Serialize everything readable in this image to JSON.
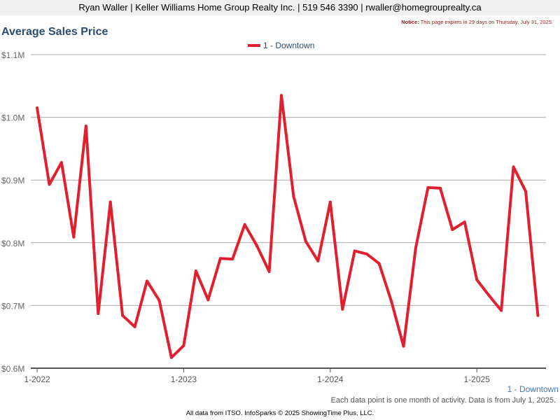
{
  "header": {
    "contact": "Ryan Waller | Keller Williams Home Group Realty Inc. | 519 546 3390 | rwaller@homegrouprealty.ca"
  },
  "notice": {
    "label": "Notice:",
    "text": " This page expires in 29 days on Thursday, July 31, 2025."
  },
  "bottom_legend": "1 - Downtown",
  "note": "Each data point is one month of activity. Data is from July 1, 2025.",
  "footer": "All data from ITSO. InfoSparks © 2025 ShowingTime Plus, LLC.",
  "colors": {
    "series": "#e0202f",
    "title": "#2b4b6f",
    "grid": "#aaaaaa"
  },
  "chart_data": {
    "type": "line",
    "title": "Average Sales Price",
    "ylim": [
      0.6,
      1.1
    ],
    "y_ticks": [
      {
        "value": 0.6,
        "label": "$0.6M"
      },
      {
        "value": 0.7,
        "label": "$0.7M"
      },
      {
        "value": 0.8,
        "label": "$0.8M"
      },
      {
        "value": 0.9,
        "label": "$0.9M"
      },
      {
        "value": 1.0,
        "label": "$1.0M"
      },
      {
        "value": 1.1,
        "label": "$1.1M"
      }
    ],
    "x_ticks": [
      {
        "index": 0,
        "label": "1-2022"
      },
      {
        "index": 12,
        "label": "1-2023"
      },
      {
        "index": 24,
        "label": "1-2024"
      },
      {
        "index": 36,
        "label": "1-2025"
      }
    ],
    "grid": true,
    "legend": "top-center",
    "series": [
      {
        "name": "1 - Downtown",
        "x": [
          "2022-01",
          "2022-02",
          "2022-03",
          "2022-04",
          "2022-05",
          "2022-06",
          "2022-07",
          "2022-08",
          "2022-09",
          "2022-10",
          "2022-11",
          "2022-12",
          "2023-01",
          "2023-02",
          "2023-03",
          "2023-04",
          "2023-05",
          "2023-06",
          "2023-07",
          "2023-08",
          "2023-09",
          "2023-10",
          "2023-11",
          "2023-12",
          "2024-01",
          "2024-02",
          "2024-03",
          "2024-04",
          "2024-05",
          "2024-06",
          "2024-07",
          "2024-08",
          "2024-09",
          "2024-10",
          "2024-11",
          "2024-12",
          "2025-01",
          "2025-02",
          "2025-03",
          "2025-04",
          "2025-05",
          "2025-06"
        ],
        "values": [
          1.015,
          0.893,
          0.928,
          0.809,
          0.986,
          0.687,
          0.865,
          0.684,
          0.666,
          0.739,
          0.708,
          0.617,
          0.636,
          0.755,
          0.709,
          0.775,
          0.774,
          0.829,
          0.795,
          0.754,
          1.035,
          0.874,
          0.802,
          0.771,
          0.865,
          0.694,
          0.787,
          0.782,
          0.767,
          0.707,
          0.635,
          0.792,
          0.888,
          0.887,
          0.821,
          0.833,
          0.741,
          0.716,
          0.692,
          0.921,
          0.882,
          0.684
        ]
      }
    ]
  }
}
